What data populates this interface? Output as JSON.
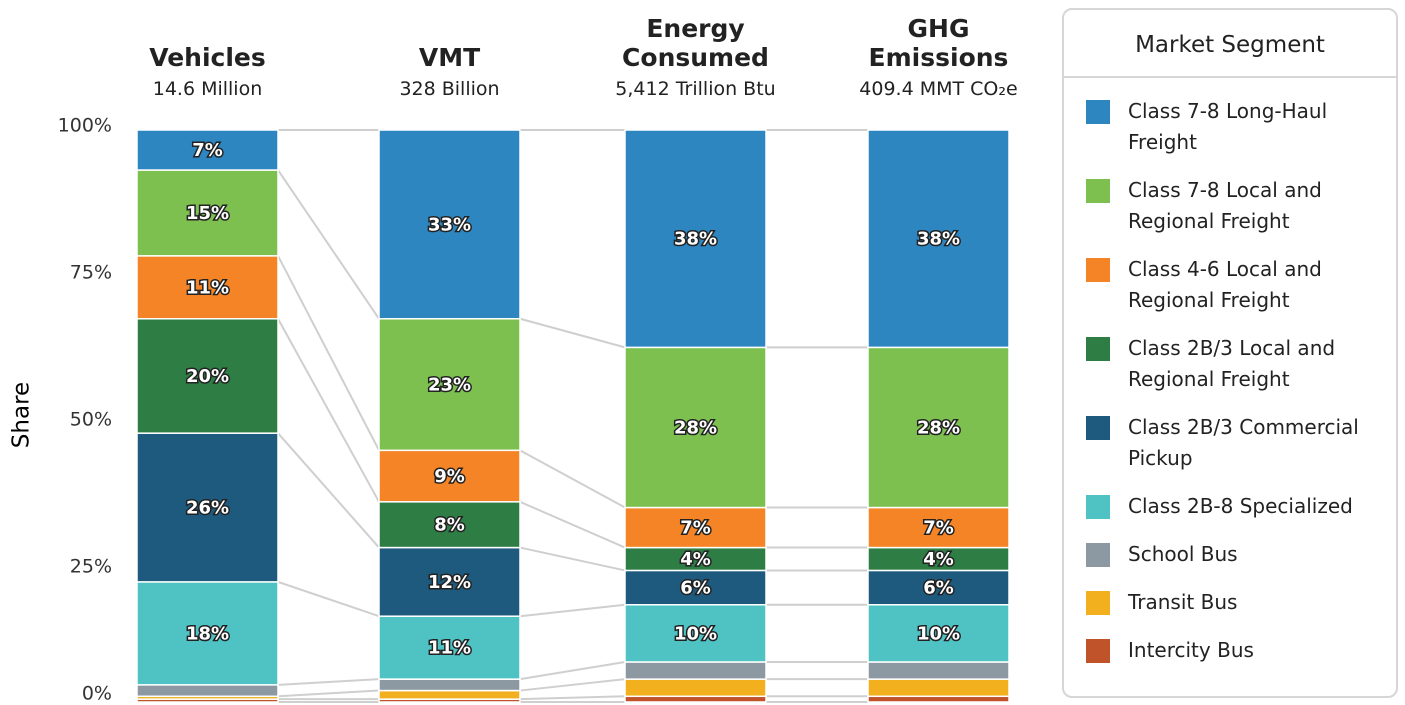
{
  "chart_data": {
    "type": "bar",
    "stacked": true,
    "categories": [
      "Vehicles",
      "VMT",
      "Energy Consumed",
      "GHG Emissions"
    ],
    "subtitles": [
      "14.6 Million",
      "328 Billion",
      "5,412 Trillion Btu",
      "409.4 MMT CO₂e"
    ],
    "y_label": "Share",
    "legend_title": "Market Segment",
    "ylim": [
      0,
      100
    ],
    "yticks": [
      {
        "value": 0,
        "label": "0%"
      },
      {
        "value": 25,
        "label": "25%"
      },
      {
        "value": 50,
        "label": "50%"
      },
      {
        "value": 75,
        "label": "75%"
      },
      {
        "value": 100,
        "label": "100%"
      }
    ],
    "series": [
      {
        "name": "Class 7-8 Long-Haul Freight",
        "color": "#2e86c1",
        "values": [
          7,
          33,
          38,
          38
        ],
        "value_labels": [
          "7%",
          "33%",
          "38%",
          "38%"
        ]
      },
      {
        "name": "Class 7-8 Local and Regional Freight",
        "color": "#7dc050",
        "values": [
          15,
          23,
          28,
          28
        ],
        "value_labels": [
          "15%",
          "23%",
          "28%",
          "28%"
        ]
      },
      {
        "name": "Class 4-6 Local and Regional Freight",
        "color": "#f58426",
        "values": [
          11,
          9,
          7,
          7
        ],
        "value_labels": [
          "11%",
          "9%",
          "7%",
          "7%"
        ]
      },
      {
        "name": "Class 2B/3 Local and Regional Freight",
        "color": "#2e7d45",
        "values": [
          20,
          8,
          4,
          4
        ],
        "value_labels": [
          "20%",
          "8%",
          "4%",
          "4%"
        ]
      },
      {
        "name": "Class 2B/3 Commercial Pickup",
        "color": "#1e5a7e",
        "values": [
          26,
          12,
          6,
          6
        ],
        "value_labels": [
          "26%",
          "12%",
          "6%",
          "6%"
        ]
      },
      {
        "name": "Class 2B-8 Specialized",
        "color": "#4fc3c4",
        "values": [
          18,
          11,
          10,
          10
        ],
        "value_labels": [
          "18%",
          "11%",
          "10%",
          "10%"
        ]
      },
      {
        "name": "School Bus",
        "color": "#8c98a2",
        "values": [
          2,
          2,
          3,
          3
        ],
        "value_labels": [
          null,
          null,
          null,
          null
        ]
      },
      {
        "name": "Transit Bus",
        "color": "#f2b01e",
        "values": [
          0.5,
          1.5,
          3,
          3
        ],
        "value_labels": [
          null,
          null,
          null,
          null
        ]
      },
      {
        "name": "Intercity Bus",
        "color": "#c0532a",
        "values": [
          0.5,
          0.5,
          1,
          1
        ],
        "value_labels": [
          null,
          null,
          null,
          null
        ]
      }
    ]
  }
}
